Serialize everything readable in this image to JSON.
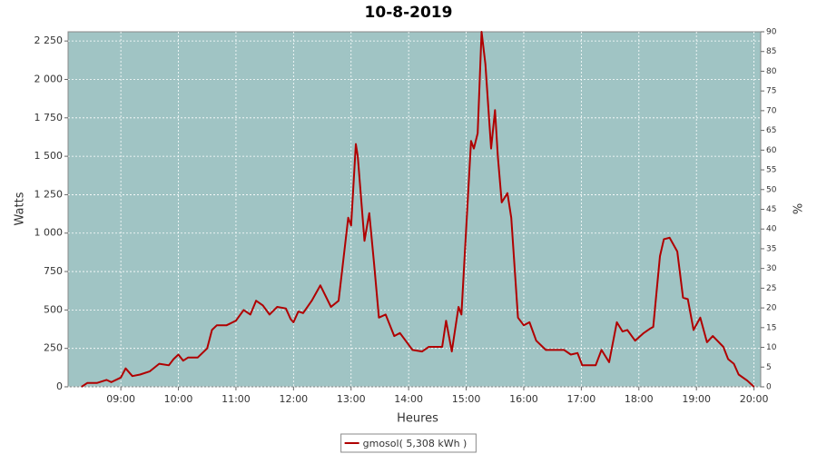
{
  "chart_data": {
    "type": "line",
    "title": "10-8-2019",
    "xlabel": "Heures",
    "ylabel": "Watts",
    "y2label": "%",
    "x": [
      "08:19",
      "08:25",
      "08:35",
      "08:45",
      "08:50",
      "09:00",
      "09:05",
      "09:12",
      "09:20",
      "09:30",
      "09:40",
      "09:50",
      "09:55",
      "10:00",
      "10:05",
      "10:10",
      "10:20",
      "10:30",
      "10:35",
      "10:40",
      "10:50",
      "11:00",
      "11:08",
      "11:15",
      "11:21",
      "11:28",
      "11:35",
      "11:43",
      "11:52",
      "11:57",
      "12:00",
      "12:05",
      "12:10",
      "12:19",
      "12:28",
      "12:39",
      "12:47",
      "12:57",
      "13:00",
      "13:05",
      "13:07",
      "13:14",
      "13:19",
      "13:24",
      "13:29",
      "13:36",
      "13:45",
      "13:51",
      "14:04",
      "14:14",
      "14:21",
      "14:35",
      "14:39",
      "14:45",
      "14:52",
      "14:55",
      "15:05",
      "15:08",
      "15:12",
      "15:16",
      "15:20",
      "15:26",
      "15:30",
      "15:33",
      "15:37",
      "15:43",
      "15:47",
      "15:54",
      "16:00",
      "16:06",
      "16:13",
      "16:23",
      "16:42",
      "16:49",
      "16:56",
      "17:01",
      "17:15",
      "17:21",
      "17:29",
      "17:37",
      "17:43",
      "17:48",
      "17:56",
      "18:05",
      "18:12",
      "18:15",
      "18:22",
      "18:26",
      "18:32",
      "18:40",
      "18:46",
      "18:51",
      "18:57",
      "19:04",
      "19:11",
      "19:17",
      "19:28",
      "19:33",
      "19:39",
      "19:44",
      "19:53",
      "20:00"
    ],
    "series": [
      {
        "name": "gmosol( 5,308 kWh )",
        "color": "#b00000",
        "values": [
          0,
          25,
          25,
          45,
          30,
          60,
          120,
          70,
          80,
          100,
          150,
          140,
          180,
          210,
          170,
          190,
          190,
          250,
          370,
          400,
          400,
          430,
          500,
          470,
          560,
          530,
          470,
          520,
          510,
          440,
          420,
          490,
          480,
          560,
          660,
          520,
          560,
          1100,
          1050,
          1580,
          1500,
          950,
          1130,
          800,
          450,
          470,
          330,
          350,
          240,
          230,
          260,
          260,
          430,
          230,
          520,
          470,
          1600,
          1550,
          1650,
          2310,
          2100,
          1550,
          1800,
          1500,
          1200,
          1260,
          1100,
          450,
          400,
          420,
          300,
          240,
          240,
          210,
          220,
          140,
          140,
          240,
          160,
          420,
          360,
          370,
          300,
          350,
          380,
          390,
          850,
          960,
          970,
          880,
          580,
          570,
          370,
          450,
          290,
          330,
          260,
          180,
          150,
          80,
          40,
          0
        ]
      }
    ],
    "xlim": [
      "08:05",
      "20:07"
    ],
    "xticks": [
      "09:00",
      "10:00",
      "11:00",
      "12:00",
      "13:00",
      "14:00",
      "15:00",
      "16:00",
      "17:00",
      "18:00",
      "19:00",
      "20:00"
    ],
    "ylim": [
      0,
      2310
    ],
    "yticks": [
      0,
      250,
      500,
      750,
      {
        "value": 1000,
        "label": "1 000"
      },
      {
        "value": 1250,
        "label": "1 250"
      },
      {
        "value": 1500,
        "label": "1 500"
      },
      {
        "value": 1750,
        "label": "1 750"
      },
      {
        "value": 2000,
        "label": "2 000"
      },
      {
        "value": 2250,
        "label": "2 250"
      }
    ],
    "y2lim": [
      0,
      90
    ],
    "y2ticks": [
      0,
      5,
      10,
      15,
      20,
      25,
      30,
      35,
      40,
      45,
      50,
      55,
      60,
      65,
      70,
      75,
      80,
      85,
      90
    ],
    "grid": true,
    "legend": "bottom",
    "plot_background": "#a0c4c4"
  }
}
